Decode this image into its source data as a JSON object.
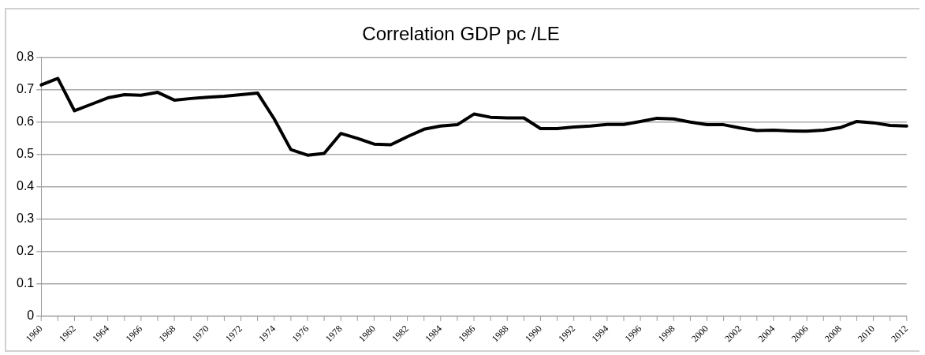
{
  "chart_data": {
    "type": "line",
    "title": "Correlation GDP pc /LE",
    "categories": [
      "1960",
      null,
      "1962",
      null,
      "1964",
      null,
      "1966",
      null,
      "1968",
      null,
      "1970",
      null,
      "1972",
      null,
      "1974",
      null,
      "1976",
      null,
      "1978",
      null,
      "1980",
      null,
      "1982",
      null,
      "1984",
      null,
      "1986",
      null,
      "1988",
      null,
      "1990",
      null,
      "1992",
      null,
      "1994",
      null,
      "1996",
      null,
      "1998",
      null,
      "2000",
      null,
      "2002",
      null,
      "2004",
      null,
      "2006",
      null,
      "2008",
      null,
      "2010",
      null,
      "2012"
    ],
    "series": [
      {
        "color": "#000000",
        "values": [
          0.715,
          0.735,
          0.635,
          0.655,
          0.675,
          0.685,
          0.683,
          0.692,
          0.668,
          0.673,
          0.677,
          0.68,
          0.685,
          0.69,
          0.61,
          0.515,
          0.498,
          0.503,
          0.565,
          0.55,
          0.532,
          0.53,
          0.555,
          0.578,
          0.588,
          0.592,
          0.625,
          0.615,
          0.613,
          0.613,
          0.58,
          0.58,
          0.585,
          0.588,
          0.593,
          0.593,
          0.602,
          0.612,
          0.61,
          0.6,
          0.592,
          0.592,
          0.582,
          0.574,
          0.575,
          0.573,
          0.572,
          0.575,
          0.583,
          0.602,
          0.598,
          0.59,
          0.588
        ]
      }
    ],
    "ylim": [
      0,
      0.8
    ],
    "yticks": [
      0,
      0.1,
      0.2,
      0.3,
      0.4,
      0.5,
      0.6,
      0.7,
      0.8
    ],
    "grid": "y",
    "legend": false,
    "marker": "none",
    "line_style": "solid"
  }
}
